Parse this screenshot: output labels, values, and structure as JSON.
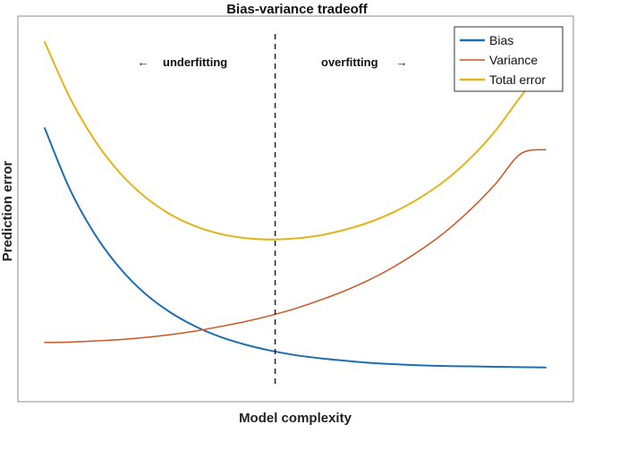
{
  "chart_data": {
    "type": "line",
    "title": "Bias-variance tradeoff",
    "xlabel": "Model complexity",
    "ylabel": "Prediction error",
    "xlim": [
      0,
      1
    ],
    "ylim": [
      0,
      1
    ],
    "grid": false,
    "legend_position": "top-right",
    "x_ticks_shown": false,
    "y_ticks_shown": false,
    "divider_x": 0.46,
    "annotations": {
      "left": "underfitting",
      "right": "overfitting",
      "left_arrow": "←",
      "right_arrow": "→"
    },
    "series": [
      {
        "name": "Bias",
        "color": "#1f6fb0",
        "line_width": "thick",
        "x": [
          0.0,
          0.05,
          0.1,
          0.15,
          0.2,
          0.25,
          0.3,
          0.35,
          0.4,
          0.45,
          0.5,
          0.55,
          0.6,
          0.65,
          0.7,
          0.75,
          0.8,
          0.85,
          0.9,
          0.95,
          1.0
        ],
        "y": [
          0.733,
          0.56,
          0.432,
          0.336,
          0.264,
          0.211,
          0.171,
          0.141,
          0.119,
          0.102,
          0.089,
          0.08,
          0.073,
          0.067,
          0.063,
          0.06,
          0.058,
          0.057,
          0.056,
          0.055,
          0.054
        ]
      },
      {
        "name": "Variance",
        "color": "#cc5522",
        "line_width": "thin",
        "x": [
          0.0,
          0.05,
          0.1,
          0.15,
          0.2,
          0.25,
          0.3,
          0.35,
          0.4,
          0.45,
          0.5,
          0.55,
          0.6,
          0.65,
          0.7,
          0.75,
          0.8,
          0.85,
          0.9,
          0.95,
          1.0
        ],
        "y": [
          0.125,
          0.126,
          0.129,
          0.133,
          0.139,
          0.147,
          0.157,
          0.17,
          0.184,
          0.201,
          0.221,
          0.245,
          0.272,
          0.304,
          0.342,
          0.387,
          0.439,
          0.502,
          0.575,
          0.66,
          0.672
        ]
      },
      {
        "name": "Total error",
        "color": "#e3b419",
        "line_width": "thick",
        "x": [
          0.0,
          0.05,
          0.1,
          0.15,
          0.2,
          0.25,
          0.3,
          0.35,
          0.4,
          0.45,
          0.5,
          0.55,
          0.6,
          0.65,
          0.7,
          0.75,
          0.8,
          0.85,
          0.9,
          0.95,
          1.0
        ],
        "y": [
          0.977,
          0.82,
          0.698,
          0.606,
          0.538,
          0.489,
          0.455,
          0.433,
          0.421,
          0.417,
          0.42,
          0.429,
          0.445,
          0.467,
          0.497,
          0.536,
          0.585,
          0.648,
          0.726,
          0.822,
          0.908
        ]
      }
    ]
  }
}
